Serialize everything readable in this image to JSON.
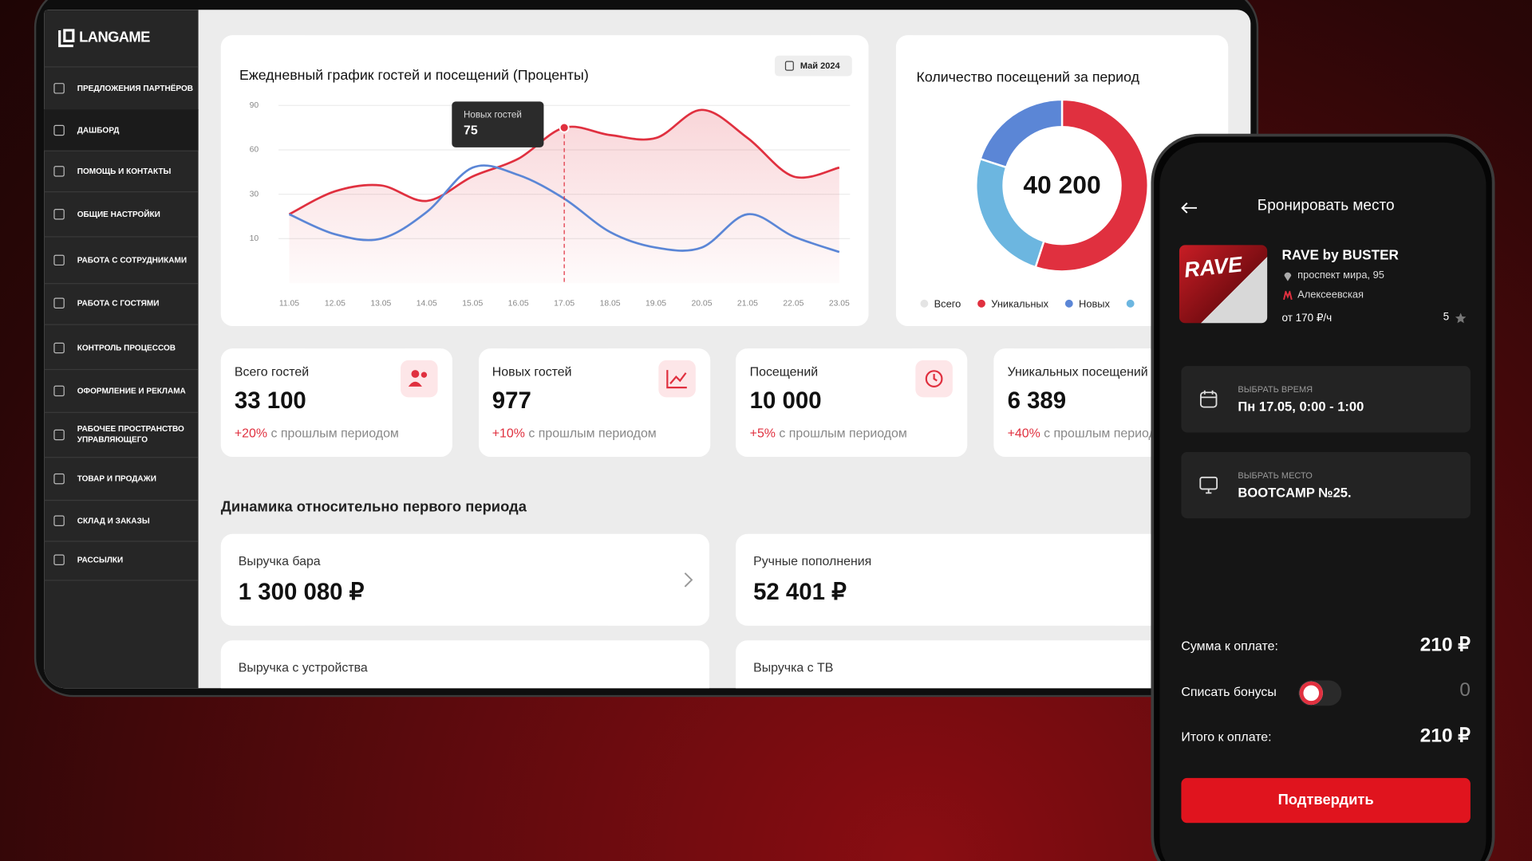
{
  "sidebar": {
    "logo": "LANGAME",
    "items": [
      "ПРЕДЛОЖЕНИЯ ПАРТНЁРОВ",
      "ДАШБОРД",
      "ПОМОЩЬ И КОНТАКТЫ",
      "ОБЩИЕ НАСТРОЙКИ",
      "РАБОТА С СОТРУДНИКАМИ",
      "РАБОТА С ГОСТЯМИ",
      "КОНТРОЛЬ ПРОЦЕССОВ",
      "ОФОРМЛЕНИЕ И РЕКЛАМА",
      "РАБОЧЕЕ ПРОСТРАНСТВО УПРАВЛЯЮЩЕГО",
      "ТОВАР И ПРОДАЖИ",
      "СКЛАД И ЗАКАЗЫ",
      "РАССЫЛКИ"
    ]
  },
  "chart_data": [
    {
      "type": "line",
      "title": "Ежедневный график гостей и посещений (Проценты)",
      "date_badge": "Май 2024",
      "categories": [
        "11.05",
        "12.05",
        "13.05",
        "14.05",
        "15.05",
        "16.05",
        "17.05",
        "18.05",
        "19.05",
        "20.05",
        "21.05",
        "22.05",
        "23.05"
      ],
      "series": [
        {
          "color": "#e0303f",
          "values": [
            21,
            32,
            36,
            27,
            42,
            54,
            75,
            70,
            68,
            87,
            68,
            42,
            48
          ]
        },
        {
          "color": "#5b86d6",
          "values": [
            21,
            12,
            10,
            22,
            48,
            43,
            28,
            13,
            8,
            8,
            21,
            11,
            7
          ]
        }
      ],
      "ylim": [
        0,
        90
      ],
      "yticks": [
        90,
        60,
        30,
        10
      ],
      "grid": true,
      "tooltip": {
        "label": "Новых гостей",
        "value": "75"
      }
    },
    {
      "type": "pie",
      "title": "Количество посещений за период",
      "center_label": "40 200",
      "categories": [
        "Всего",
        "Уникальных",
        "Новых",
        null
      ],
      "values": [
        null,
        55,
        20,
        25
      ],
      "colors": [
        "#e4e4e4",
        "#e0303f",
        "#5b86d6",
        "#6cb6e0"
      ]
    }
  ],
  "stats": [
    {
      "title": "Всего гостей",
      "value": "33 100",
      "change": "+20%",
      "note": "с прошлым периодом"
    },
    {
      "title": "Новых гостей",
      "value": "977",
      "change": "+10%",
      "note": "с прошлым периодом"
    },
    {
      "title": "Посещений",
      "value": "10 000",
      "change": "+5%",
      "note": "с прошлым периодом"
    },
    {
      "title": "Уникальных посещений",
      "value": "6 389",
      "change": "+40%",
      "note": "с прошлым периодом"
    }
  ],
  "dynamics": {
    "title": "Динамика относительно первого периода",
    "cards": [
      {
        "title": "Выручка бара",
        "value": "1 300 080 ₽"
      },
      {
        "title": "Ручные пополнения",
        "value": "52 401 ₽"
      },
      {
        "title": "Выручка с устройства"
      },
      {
        "title": "Выручка с ТВ"
      }
    ]
  },
  "phone": {
    "title": "Бронировать место",
    "event": {
      "poster": "RAVE",
      "name": "RAVE by BUSTER",
      "address": "проспект мира, 95",
      "metro": "Алексеевская",
      "price": "от 170 ₽/ч",
      "rating": "5"
    },
    "time": {
      "label": "ВЫБРАТЬ ВРЕМЯ",
      "value": "Пн 17.05, 0:00 - 1:00"
    },
    "place": {
      "label": "ВЫБРАТЬ МЕСТО",
      "value": "BOOTCAMP №25."
    },
    "sum": {
      "label": "Сумма к оплате:",
      "value": "210 ₽"
    },
    "bonus": {
      "label": "Списать бонусы",
      "value": "0"
    },
    "total": {
      "label": "Итого к оплате:",
      "value": "210 ₽"
    },
    "button": "Подтвердить"
  }
}
